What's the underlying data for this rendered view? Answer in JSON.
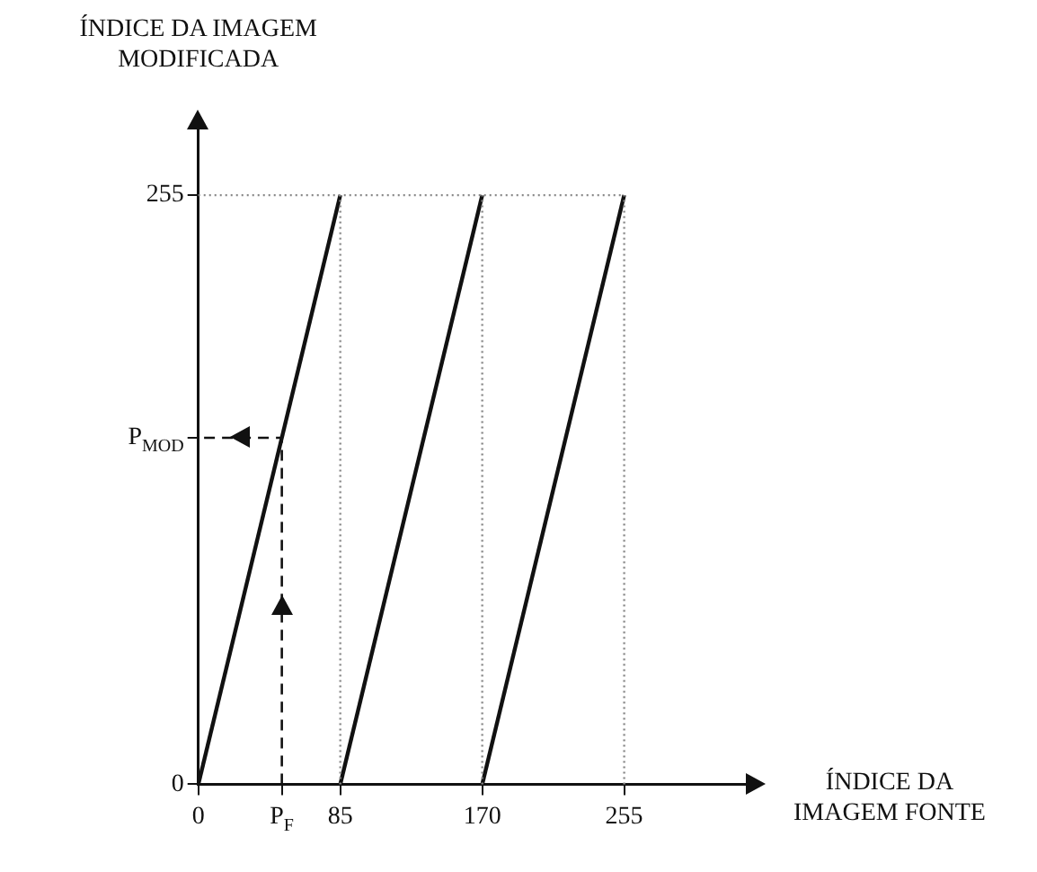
{
  "chart_data": {
    "type": "line",
    "xlabel": "ÍNDICE DA IMAGEM FONTE",
    "ylabel": "ÍNDICE DA IMAGEM MODIFICADA",
    "xlim": [
      0,
      330
    ],
    "ylim": [
      0,
      285
    ],
    "xticks": [
      0,
      {
        "value": 50,
        "label": "P$_{F}$"
      },
      85,
      170,
      255
    ],
    "yticks": [
      0,
      {
        "value": 150,
        "label": "P$_{MOD}$"
      },
      255
    ],
    "grid": false,
    "legend": false,
    "marker": "none",
    "ref_lines": [
      {
        "axis": "y",
        "value": 255,
        "color": "#888888",
        "line_style": "dotted"
      },
      {
        "axis": "x",
        "value": 85,
        "color": "#888888",
        "line_style": "dotted"
      },
      {
        "axis": "x",
        "value": 170,
        "color": "#888888",
        "line_style": "dotted"
      },
      {
        "axis": "x",
        "value": 255,
        "color": "#888888",
        "line_style": "dotted"
      }
    ],
    "series": [
      {
        "color": "#111111",
        "line_style": "solid",
        "x": [
          0,
          85
        ],
        "values": [
          0,
          255
        ]
      },
      {
        "color": "#111111",
        "line_style": "solid",
        "x": [
          85,
          170
        ],
        "values": [
          0,
          255
        ]
      },
      {
        "color": "#111111",
        "line_style": "solid",
        "x": [
          170,
          255
        ],
        "values": [
          0,
          255
        ]
      },
      {
        "color": "#111111",
        "line_style": "dashed",
        "x": [
          50,
          50,
          0
        ],
        "values": [
          0,
          150,
          150
        ]
      }
    ]
  }
}
